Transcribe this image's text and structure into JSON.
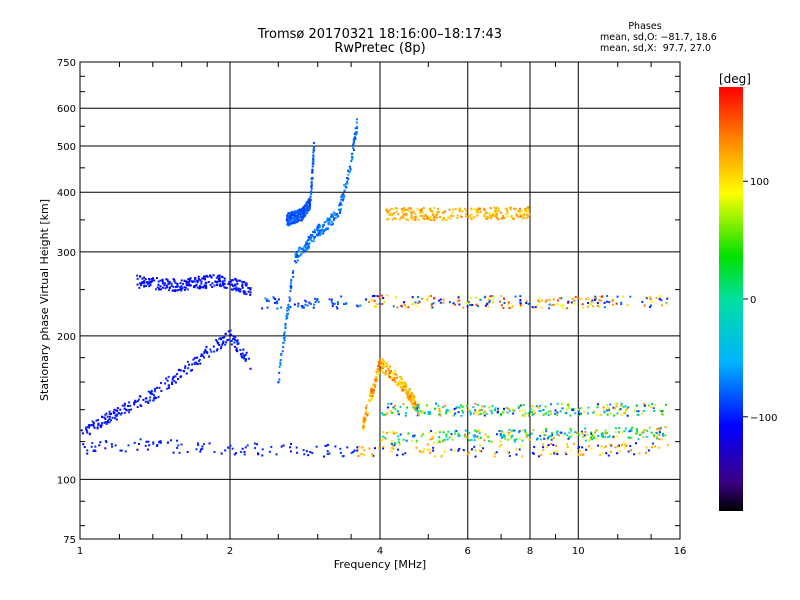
{
  "chart_data": {
    "type": "scatter",
    "title": "Tromsø 20170321 18:16:00–18:17:43",
    "subtitle": "RwPretec (8p)",
    "xlabel": "Frequency [MHz]",
    "ylabel": "Stationary phase Virtual Height [km]",
    "x_scale": "log",
    "y_scale": "log",
    "xlim": [
      1,
      16
    ],
    "ylim": [
      75,
      750
    ],
    "x_ticks": [
      1,
      2,
      4,
      6,
      8,
      10,
      16
    ],
    "x_tick_labels": [
      "1",
      "2",
      "4",
      "6",
      "8",
      "10",
      "16"
    ],
    "y_ticks": [
      75,
      100,
      200,
      300,
      400,
      500,
      600,
      750
    ],
    "y_tick_labels": [
      "75",
      "100",
      "200",
      "300",
      "400",
      "500",
      "600",
      "750"
    ],
    "grid": true,
    "colorbar": {
      "label": "[deg]",
      "range": [
        -180,
        180
      ],
      "ticks": [
        100,
        0,
        -100
      ],
      "tick_labels": [
        "100",
        "0",
        "−100"
      ],
      "colormap": "rainbow"
    },
    "stats": {
      "title": "Phases",
      "line1": "mean, sd,O: −81.7, 18.6",
      "line2": "mean, sd,X:  97.7, 27.0"
    },
    "traces": [
      {
        "name": "",
        "trend": [
          [
            1.0,
            116
          ],
          [
            1.3,
            118
          ],
          [
            2.0,
            116
          ],
          [
            3.0,
            115
          ],
          [
            5.0,
            115
          ],
          [
            8.0,
            115
          ],
          [
            15.5,
            116
          ]
        ],
        "phase_range": [
          -110,
          -90
        ],
        "split_freq": 3.6,
        "phase_range_high": [
          90,
          140
        ]
      },
      {
        "name": "",
        "trend": [
          [
            2.3,
            235
          ],
          [
            3.0,
            234
          ],
          [
            4.0,
            236
          ],
          [
            6.0,
            236
          ],
          [
            9.0,
            235
          ],
          [
            15.5,
            236
          ]
        ],
        "phase_range": [
          -110,
          -70
        ],
        "split_freq": 3.8,
        "phase_range_high": [
          80,
          170
        ]
      },
      {
        "name": "",
        "trend": [
          [
            2.5,
            160
          ],
          [
            2.7,
            290
          ],
          [
            3.0,
            330
          ],
          [
            3.3,
            360
          ],
          [
            3.5,
            460
          ],
          [
            3.6,
            560
          ]
        ],
        "phase_range": [
          -90,
          -60
        ]
      },
      {
        "name": "",
        "trend": [
          [
            2.6,
            350
          ],
          [
            2.8,
            360
          ],
          [
            2.9,
            380
          ],
          [
            2.95,
            500
          ]
        ],
        "phase_range": [
          -95,
          -70
        ]
      },
      {
        "name": "",
        "trend": [
          [
            1.0,
            125
          ],
          [
            1.4,
            150
          ],
          [
            1.8,
            185
          ],
          [
            2.0,
            200
          ],
          [
            2.2,
            175
          ]
        ],
        "phase_range": [
          -115,
          -90
        ]
      },
      {
        "name": "",
        "trend": [
          [
            1.3,
            260
          ],
          [
            1.6,
            255
          ],
          [
            1.9,
            262
          ],
          [
            2.2,
            250
          ]
        ],
        "phase_range": [
          -115,
          -95
        ]
      },
      {
        "name": "",
        "trend": [
          [
            3.7,
            130
          ],
          [
            4.0,
            175
          ],
          [
            4.4,
            160
          ],
          [
            4.8,
            140
          ]
        ],
        "phase_range": [
          90,
          150
        ]
      },
      {
        "name": "",
        "trend": [
          [
            4.1,
            360
          ],
          [
            5.0,
            360
          ],
          [
            6.0,
            360
          ],
          [
            8.0,
            362
          ]
        ],
        "phase_range": [
          100,
          140
        ]
      },
      {
        "name": "",
        "trend": [
          [
            4.0,
            140
          ],
          [
            6.0,
            140
          ],
          [
            10.0,
            140
          ],
          [
            15.0,
            140
          ]
        ],
        "phase_range": [
          -110,
          140
        ]
      },
      {
        "name": "",
        "trend": [
          [
            4.0,
            122
          ],
          [
            6.0,
            123
          ],
          [
            9.0,
            124
          ],
          [
            15.0,
            125
          ]
        ],
        "phase_range": [
          -100,
          140
        ]
      }
    ]
  }
}
